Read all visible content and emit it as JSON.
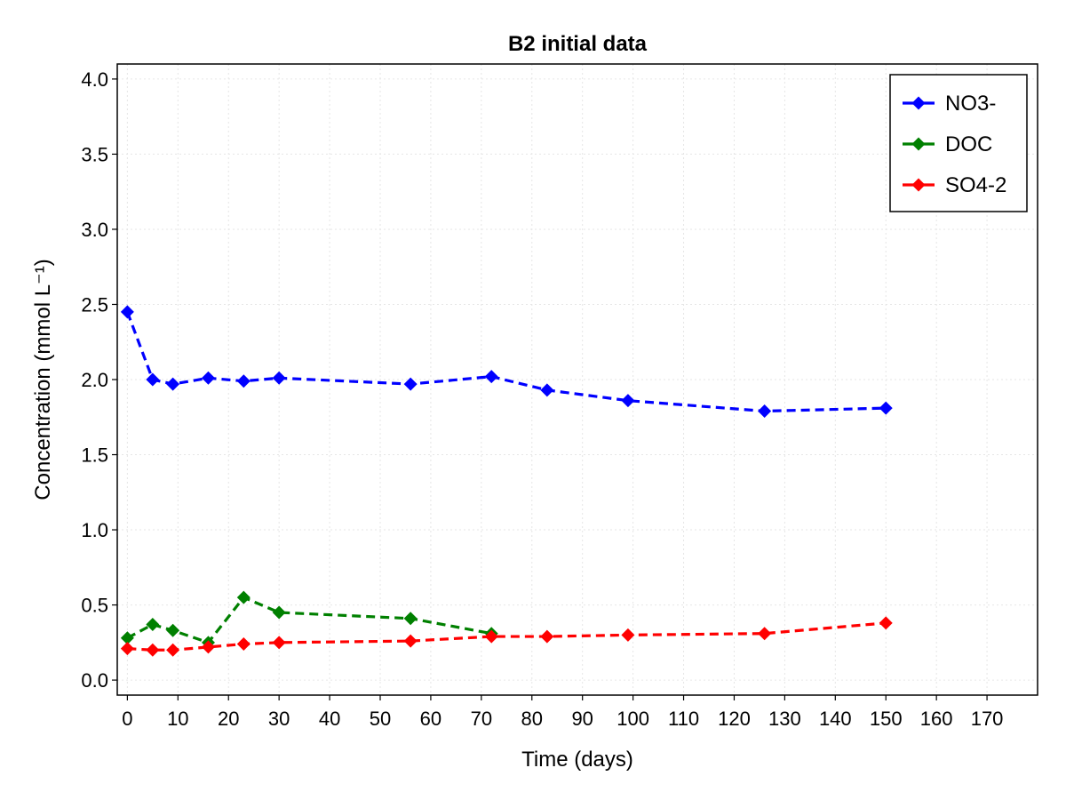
{
  "chart_data": {
    "type": "line",
    "title": "B2 initial data",
    "xlabel": "Time (days)",
    "ylabel": "Concentration (mmol L⁻¹)",
    "xlim": [
      -2,
      180
    ],
    "ylim": [
      -0.1,
      4.1
    ],
    "xticks": [
      0,
      10,
      20,
      30,
      40,
      50,
      60,
      70,
      80,
      90,
      100,
      110,
      120,
      130,
      140,
      150,
      160,
      170
    ],
    "yticks": [
      0.0,
      0.5,
      1.0,
      1.5,
      2.0,
      2.5,
      3.0,
      3.5,
      4.0
    ],
    "ytick_labels": [
      "0.0",
      "0.5",
      "1.0",
      "1.5",
      "2.0",
      "2.5",
      "3.0",
      "3.5",
      "4.0"
    ],
    "grid": true,
    "legend_position": "top-right",
    "series": [
      {
        "name": "NO3-",
        "color": "#0000ff",
        "marker": "diamond",
        "line_style": "dashed",
        "x": [
          0,
          5,
          9,
          16,
          23,
          30,
          56,
          72,
          83,
          99,
          126,
          150
        ],
        "y": [
          2.45,
          2.0,
          1.97,
          2.01,
          1.99,
          2.01,
          1.97,
          2.02,
          1.93,
          1.86,
          1.79,
          1.81
        ]
      },
      {
        "name": "DOC",
        "color": "#008000",
        "marker": "diamond",
        "line_style": "dashed",
        "x": [
          0,
          5,
          9,
          16,
          23,
          30,
          56,
          72
        ],
        "y": [
          0.28,
          0.37,
          0.33,
          0.25,
          0.55,
          0.45,
          0.41,
          0.31
        ]
      },
      {
        "name": "SO4-2",
        "color": "#ff0000",
        "marker": "diamond",
        "line_style": "dashed",
        "x": [
          0,
          5,
          9,
          16,
          23,
          30,
          56,
          72,
          83,
          99,
          126,
          150
        ],
        "y": [
          0.21,
          0.2,
          0.2,
          0.22,
          0.24,
          0.25,
          0.26,
          0.29,
          0.29,
          0.3,
          0.31,
          0.38
        ]
      }
    ]
  }
}
